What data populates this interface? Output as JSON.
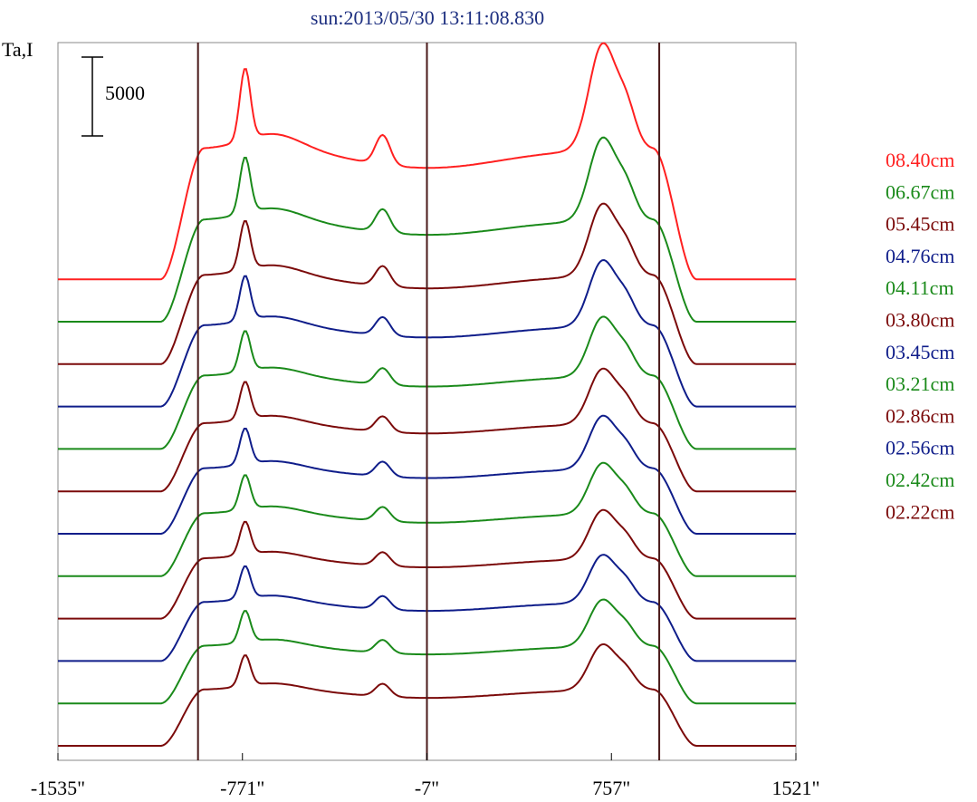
{
  "chart_data": {
    "type": "line",
    "title": "sun:2013/05/30 13:11:08.830",
    "ylabel": "Ta,I",
    "scale_bar_label": "5000",
    "x_tick_labels": [
      "-1535\"",
      "-771\"",
      "-7\"",
      "757\"",
      "1521\""
    ],
    "x_ticks": [
      -1535,
      -771,
      -7,
      757,
      1521
    ],
    "xlim": [
      -1535,
      1521
    ],
    "vertical_markers": [
      -955,
      -7,
      955
    ],
    "colors": {
      "red": "#ff2020",
      "green": "#1a8a1a",
      "maroon": "#7b0a0a",
      "navy": "#0f1d8a",
      "marker": "#4a1a1a"
    },
    "legend_order": [
      "08.40cm",
      "06.67cm",
      "05.45cm",
      "04.76cm",
      "04.11cm",
      "03.80cm",
      "03.45cm",
      "03.21cm",
      "02.86cm",
      "02.56cm",
      "02.42cm",
      "02.22cm"
    ],
    "series": [
      {
        "name": "08.40cm",
        "color": "#ff2020",
        "baseline_rank": 0,
        "amp": 1.0
      },
      {
        "name": "06.67cm",
        "color": "#1a8a1a",
        "baseline_rank": 1,
        "amp": 0.78
      },
      {
        "name": "05.45cm",
        "color": "#7b0a0a",
        "baseline_rank": 2,
        "amp": 0.68
      },
      {
        "name": "04.76cm",
        "color": "#0f1d8a",
        "baseline_rank": 3,
        "amp": 0.62
      },
      {
        "name": "04.11cm",
        "color": "#1a8a1a",
        "baseline_rank": 4,
        "amp": 0.56
      },
      {
        "name": "03.80cm",
        "color": "#7b0a0a",
        "baseline_rank": 5,
        "amp": 0.52
      },
      {
        "name": "03.45cm",
        "color": "#0f1d8a",
        "baseline_rank": 6,
        "amp": 0.5
      },
      {
        "name": "03.21cm",
        "color": "#1a8a1a",
        "baseline_rank": 7,
        "amp": 0.48
      },
      {
        "name": "02.86cm",
        "color": "#7b0a0a",
        "baseline_rank": 8,
        "amp": 0.46
      },
      {
        "name": "02.56cm",
        "color": "#0f1d8a",
        "baseline_rank": 9,
        "amp": 0.45
      },
      {
        "name": "02.42cm",
        "color": "#1a8a1a",
        "baseline_rank": 10,
        "amp": 0.44
      },
      {
        "name": "02.22cm",
        "color": "#7b0a0a",
        "baseline_rank": 11,
        "amp": 0.43
      }
    ]
  }
}
